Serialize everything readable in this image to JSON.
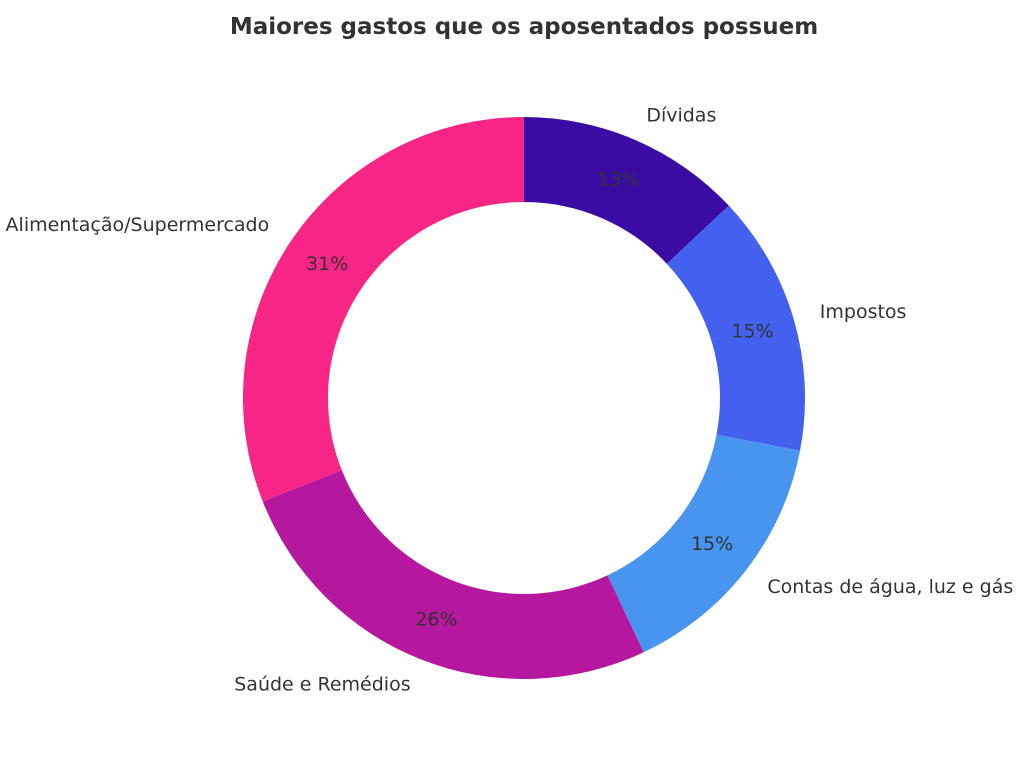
{
  "chart_data": {
    "type": "pie",
    "style": "donut",
    "title": "Maiores gastos que os aposentados possuem",
    "categories": [
      "Dívidas",
      "Impostos",
      "Contas de água, luz e gás",
      "Saúde e Remédios",
      "Alimentação/Supermercado"
    ],
    "values": [
      13,
      15,
      15,
      26,
      31
    ],
    "labels": [
      "13%",
      "15%",
      "15%",
      "26%",
      "31%"
    ],
    "colors": [
      "#3a0ca3",
      "#4361ee",
      "#4895ef",
      "#b5179e",
      "#f72585"
    ],
    "start_angle_deg": 90,
    "direction": "clockwise"
  }
}
